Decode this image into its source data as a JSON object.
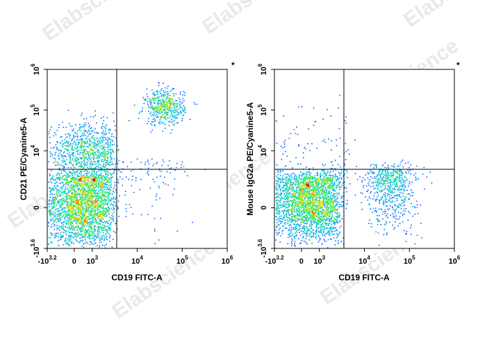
{
  "watermark": "Elabscience",
  "chart_data": [
    {
      "type": "scatter",
      "style": "density pseudocolor dot plot",
      "xlabel": "CD19 FITC-A",
      "ylabel": "CD21 PE/Cyanine5-A",
      "corner_mark": "*",
      "x_ticks": [
        {
          "value": -1585,
          "base": "-10",
          "exp": "3.2"
        },
        {
          "value": 0,
          "base": "0",
          "exp": ""
        },
        {
          "value": 1000,
          "base": "10",
          "exp": "3"
        },
        {
          "value": 10000,
          "base": "10",
          "exp": "4"
        },
        {
          "value": 100000,
          "base": "10",
          "exp": "5"
        },
        {
          "value": 1000000,
          "base": "10",
          "exp": "6"
        }
      ],
      "y_ticks": [
        {
          "value": -3981,
          "base": "-10",
          "exp": "3.6"
        },
        {
          "value": 0,
          "base": "0",
          "exp": ""
        },
        {
          "value": 10000,
          "base": "10",
          "exp": "4"
        },
        {
          "value": 100000,
          "base": "10",
          "exp": "5"
        },
        {
          "value": 1000000,
          "base": "10",
          "exp": "6"
        }
      ],
      "gates": {
        "x": 3500,
        "y": 3500
      },
      "populations": [
        {
          "cx": 400,
          "cy": 200,
          "sx": 0.42,
          "sy": 0.55,
          "n": 2600
        },
        {
          "cx": 700,
          "cy": 9000,
          "sx": 0.45,
          "sy": 0.35,
          "n": 1000
        },
        {
          "cx": 40000,
          "cy": 120000,
          "sx": 0.22,
          "sy": 0.22,
          "n": 500
        },
        {
          "cx": 15000,
          "cy": 2500,
          "sx": 0.55,
          "sy": 0.9,
          "n": 120
        }
      ]
    },
    {
      "type": "scatter",
      "style": "density pseudocolor dot plot",
      "xlabel": "CD19 FITC-A",
      "ylabel": "Mouse IgG2a PE/Cyanine5-A",
      "corner_mark": "*",
      "x_ticks": [
        {
          "value": -1585,
          "base": "-10",
          "exp": "3.2"
        },
        {
          "value": 0,
          "base": "0",
          "exp": ""
        },
        {
          "value": 1000,
          "base": "10",
          "exp": "3"
        },
        {
          "value": 10000,
          "base": "10",
          "exp": "4"
        },
        {
          "value": 100000,
          "base": "10",
          "exp": "5"
        },
        {
          "value": 1000000,
          "base": "10",
          "exp": "6"
        }
      ],
      "y_ticks": [
        {
          "value": -3981,
          "base": "-10",
          "exp": "3.6"
        },
        {
          "value": 0,
          "base": "0",
          "exp": ""
        },
        {
          "value": 10000,
          "base": "10",
          "exp": "4"
        },
        {
          "value": 100000,
          "base": "10",
          "exp": "5"
        },
        {
          "value": 1000000,
          "base": "10",
          "exp": "6"
        }
      ],
      "gates": {
        "x": 3500,
        "y": 3500
      },
      "populations": [
        {
          "cx": 400,
          "cy": 400,
          "sx": 0.42,
          "sy": 0.5,
          "n": 2600
        },
        {
          "cx": 38000,
          "cy": 1500,
          "sx": 0.28,
          "sy": 0.6,
          "n": 650
        },
        {
          "cx": 900,
          "cy": 5500,
          "sx": 0.8,
          "sy": 0.7,
          "n": 150
        }
      ]
    }
  ]
}
